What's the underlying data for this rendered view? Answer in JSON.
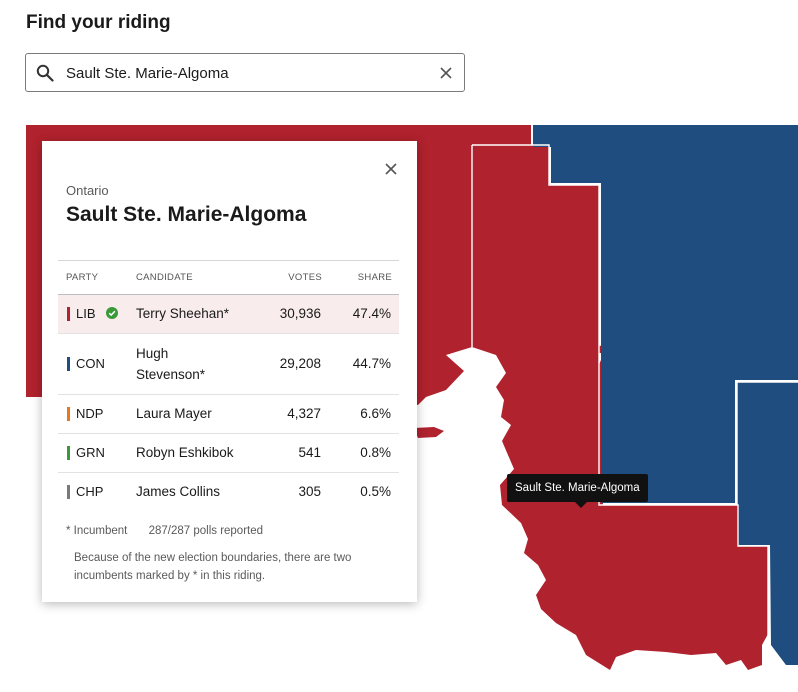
{
  "heading": "Find your riding",
  "search": {
    "value": "Sault Ste. Marie-Algoma",
    "placeholder": ""
  },
  "map": {
    "tooltip": "Sault Ste. Marie-Algoma",
    "colors": {
      "liberal": "#b0222d",
      "conservative": "#1f4d7f",
      "border": "#ffffff"
    }
  },
  "card": {
    "province": "Ontario",
    "riding": "Sault Ste. Marie-Algoma",
    "headers": {
      "party": "PARTY",
      "candidate": "CANDIDATE",
      "votes": "VOTES",
      "share": "SHARE"
    },
    "rows": [
      {
        "party": "LIB",
        "color": "#b0222d",
        "candidate": "Terry Sheehan*",
        "votes": "30,936",
        "share": "47.4%",
        "winner": true
      },
      {
        "party": "CON",
        "color": "#1f4d7f",
        "candidate": "Hugh Stevenson*",
        "votes": "29,208",
        "share": "44.7%",
        "winner": false
      },
      {
        "party": "NDP",
        "color": "#e8781e",
        "candidate": "Laura Mayer",
        "votes": "4,327",
        "share": "6.6%",
        "winner": false
      },
      {
        "party": "GRN",
        "color": "#3a9a3a",
        "candidate": "Robyn Eshkibok",
        "votes": "541",
        "share": "0.8%",
        "winner": false
      },
      {
        "party": "CHP",
        "color": "#7a7a7a",
        "candidate": "James Collins",
        "votes": "305",
        "share": "0.5%",
        "winner": false
      }
    ],
    "incumbent_note": "* Incumbent",
    "polls": "287/287 polls reported",
    "boundary_note": "Because of the new election boundaries, there are two incumbents marked by * in this riding."
  }
}
